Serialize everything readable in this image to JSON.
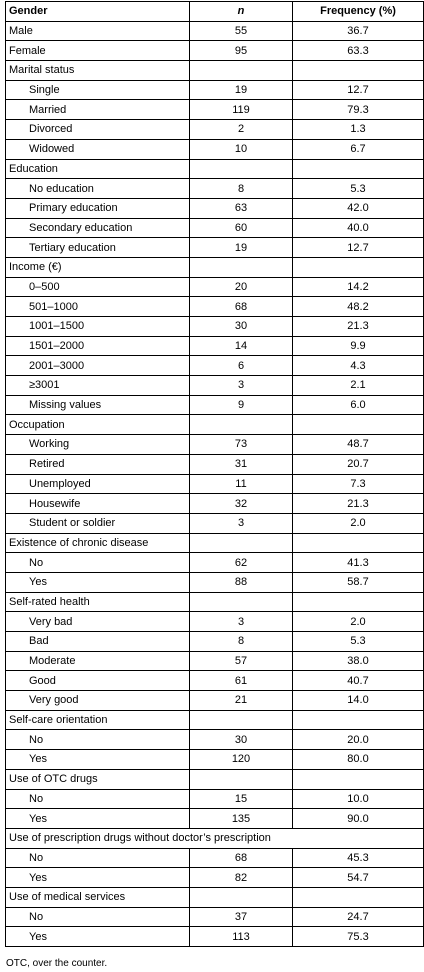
{
  "table": {
    "headers": [
      "Gender",
      "n",
      "Frequency (%)"
    ],
    "rows": [
      {
        "label": "Male",
        "n": "55",
        "freq": "36.7"
      },
      {
        "label": "Female",
        "n": "95",
        "freq": "63.3"
      },
      {
        "label": "Marital status",
        "section": true
      },
      {
        "label": "Single",
        "n": "19",
        "freq": "12.7",
        "sub": true
      },
      {
        "label": "Married",
        "n": "119",
        "freq": "79.3",
        "sub": true
      },
      {
        "label": "Divorced",
        "n": "2",
        "freq": "1.3",
        "sub": true
      },
      {
        "label": "Widowed",
        "n": "10",
        "freq": "6.7",
        "sub": true
      },
      {
        "label": "Education",
        "section": true
      },
      {
        "label": "No education",
        "n": "8",
        "freq": "5.3",
        "sub": true
      },
      {
        "label": "Primary education",
        "n": "63",
        "freq": "42.0",
        "sub": true
      },
      {
        "label": "Secondary education",
        "n": "60",
        "freq": "40.0",
        "sub": true
      },
      {
        "label": "Tertiary education",
        "n": "19",
        "freq": "12.7",
        "sub": true
      },
      {
        "label": "Income (€)",
        "section": true
      },
      {
        "label": "0–500",
        "n": "20",
        "freq": "14.2",
        "sub": true
      },
      {
        "label": "501–1000",
        "n": "68",
        "freq": "48.2",
        "sub": true
      },
      {
        "label": "1001–1500",
        "n": "30",
        "freq": "21.3",
        "sub": true
      },
      {
        "label": "1501–2000",
        "n": "14",
        "freq": "9.9",
        "sub": true
      },
      {
        "label": "2001–3000",
        "n": "6",
        "freq": "4.3",
        "sub": true
      },
      {
        "label": "≥3001",
        "n": "3",
        "freq": "2.1",
        "sub": true
      },
      {
        "label": "Missing values",
        "n": "9",
        "freq": "6.0",
        "sub": true
      },
      {
        "label": "Occupation",
        "section": true
      },
      {
        "label": "Working",
        "n": "73",
        "freq": "48.7",
        "sub": true
      },
      {
        "label": "Retired",
        "n": "31",
        "freq": "20.7",
        "sub": true
      },
      {
        "label": "Unemployed",
        "n": "11",
        "freq": "7.3",
        "sub": true
      },
      {
        "label": "Housewife",
        "n": "32",
        "freq": "21.3",
        "sub": true
      },
      {
        "label": "Student or soldier",
        "n": "3",
        "freq": "2.0",
        "sub": true
      },
      {
        "label": "Existence of chronic disease",
        "section": true
      },
      {
        "label": "No",
        "n": "62",
        "freq": "41.3",
        "sub": true
      },
      {
        "label": "Yes",
        "n": "88",
        "freq": "58.7",
        "sub": true
      },
      {
        "label": "Self-rated health",
        "section": true
      },
      {
        "label": "Very bad",
        "n": "3",
        "freq": "2.0",
        "sub": true
      },
      {
        "label": "Bad",
        "n": "8",
        "freq": "5.3",
        "sub": true
      },
      {
        "label": "Moderate",
        "n": "57",
        "freq": "38.0",
        "sub": true
      },
      {
        "label": "Good",
        "n": "61",
        "freq": "40.7",
        "sub": true
      },
      {
        "label": "Very good",
        "n": "21",
        "freq": "14.0",
        "sub": true
      },
      {
        "label": "Self-care orientation",
        "section": true
      },
      {
        "label": "No",
        "n": "30",
        "freq": "20.0",
        "sub": true
      },
      {
        "label": "Yes",
        "n": "120",
        "freq": "80.0",
        "sub": true
      },
      {
        "label": "Use of OTC drugs",
        "section": true
      },
      {
        "label": "No",
        "n": "15",
        "freq": "10.0",
        "sub": true
      },
      {
        "label": "Yes",
        "n": "135",
        "freq": "90.0",
        "sub": true
      },
      {
        "label": "Use of prescription drugs without doctor’s prescription",
        "section": true,
        "span": true
      },
      {
        "label": "No",
        "n": "68",
        "freq": "45.3",
        "sub": true
      },
      {
        "label": "Yes",
        "n": "82",
        "freq": "54.7",
        "sub": true
      },
      {
        "label": "Use of medical services",
        "section": true
      },
      {
        "label": "No",
        "n": "37",
        "freq": "24.7",
        "sub": true
      },
      {
        "label": "Yes",
        "n": "113",
        "freq": "75.3",
        "sub": true
      }
    ]
  },
  "footnote": "OTC, over the counter."
}
